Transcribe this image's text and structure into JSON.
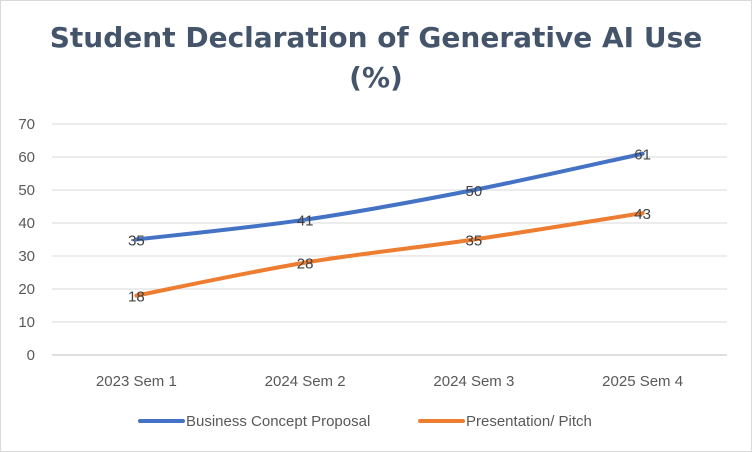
{
  "chart_data": {
    "type": "line",
    "title_line1": "Student Declaration of Generative AI Use",
    "title_line2": "(%)",
    "categories": [
      "2023 Sem 1",
      "2024 Sem 2",
      "2024 Sem 3",
      "2025 Sem 4"
    ],
    "series": [
      {
        "name": "Business Concept Proposal",
        "values": [
          35,
          41,
          50,
          61
        ],
        "color": "#4472c4"
      },
      {
        "name": "Presentation/ Pitch",
        "values": [
          18,
          28,
          35,
          43
        ],
        "color": "#ed7d31"
      }
    ],
    "ylim": [
      0,
      70
    ],
    "y_ticks": [
      0,
      10,
      20,
      30,
      40,
      50,
      60,
      70
    ],
    "grid": true,
    "legend_position": "bottom"
  }
}
